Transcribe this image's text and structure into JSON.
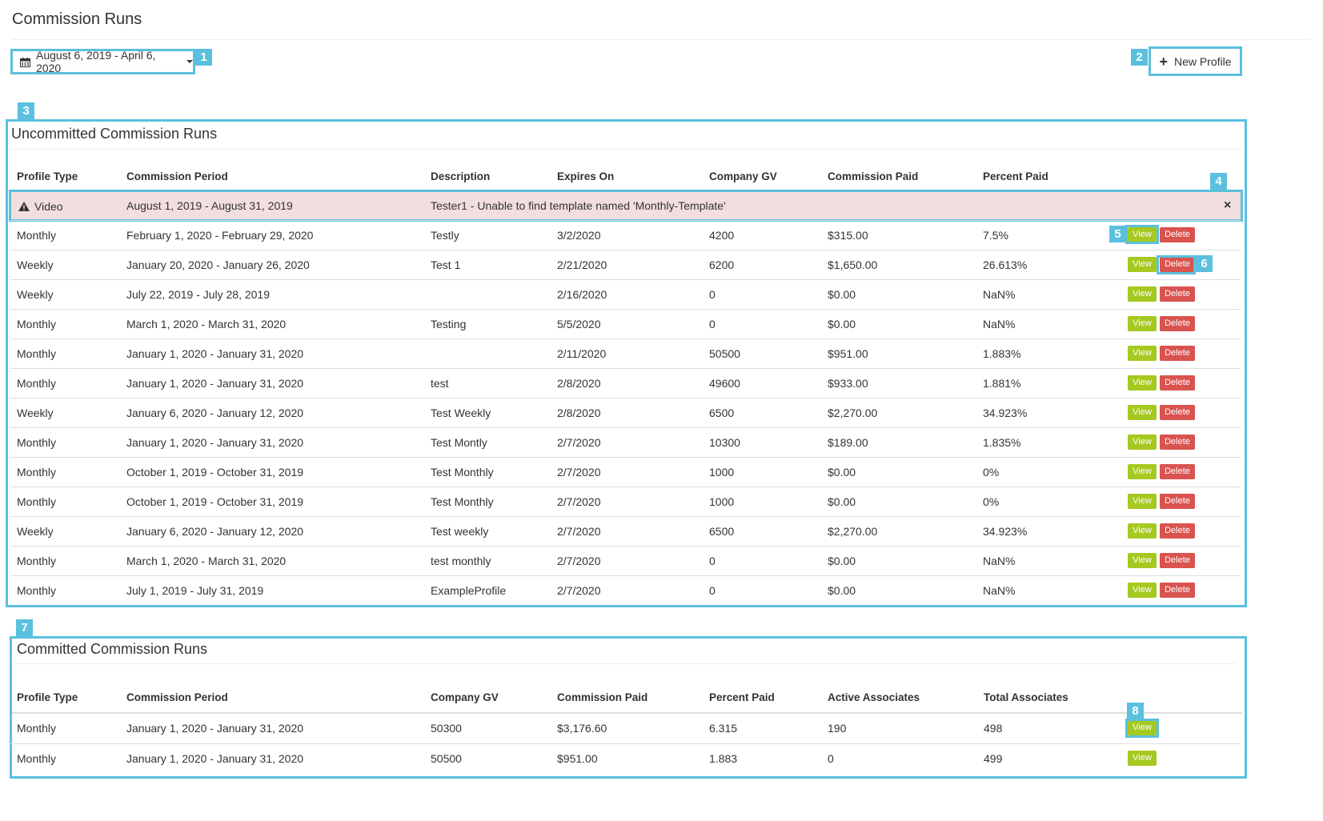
{
  "page": {
    "title": "Commission Runs"
  },
  "date_range": {
    "label": "August 6, 2019 - April 6, 2020",
    "icon": "calendar-icon"
  },
  "new_profile": {
    "label": "New Profile",
    "icon": "plus-icon"
  },
  "callouts": [
    "1",
    "2",
    "3",
    "4",
    "5",
    "6",
    "7",
    "8"
  ],
  "uncommitted": {
    "title": "Uncommitted Commission Runs",
    "columns": [
      "Profile Type",
      "Commission Period",
      "Description",
      "Expires On",
      "Company GV",
      "Commission Paid",
      "Percent Paid"
    ],
    "error_row": {
      "type": "Video",
      "period": "August 1, 2019 - August 31, 2019",
      "message": "Tester1 - Unable to find template named 'Monthly-Template'",
      "close": "×"
    },
    "rows": [
      {
        "type": "Monthly",
        "period": "February 1, 2020 - February 29, 2020",
        "desc": "Testly",
        "expires": "3/2/2020",
        "gv": "4200",
        "paid": "$315.00",
        "pct": "7.5%"
      },
      {
        "type": "Weekly",
        "period": "January 20, 2020 - January 26, 2020",
        "desc": "Test 1",
        "expires": "2/21/2020",
        "gv": "6200",
        "paid": "$1,650.00",
        "pct": "26.613%"
      },
      {
        "type": "Weekly",
        "period": "July 22, 2019 - July 28, 2019",
        "desc": "",
        "expires": "2/16/2020",
        "gv": "0",
        "paid": "$0.00",
        "pct": "NaN%"
      },
      {
        "type": "Monthly",
        "period": "March 1, 2020 - March 31, 2020",
        "desc": "Testing",
        "expires": "5/5/2020",
        "gv": "0",
        "paid": "$0.00",
        "pct": "NaN%"
      },
      {
        "type": "Monthly",
        "period": "January 1, 2020 - January 31, 2020",
        "desc": "",
        "expires": "2/11/2020",
        "gv": "50500",
        "paid": "$951.00",
        "pct": "1.883%"
      },
      {
        "type": "Monthly",
        "period": "January 1, 2020 - January 31, 2020",
        "desc": "test",
        "expires": "2/8/2020",
        "gv": "49600",
        "paid": "$933.00",
        "pct": "1.881%"
      },
      {
        "type": "Weekly",
        "period": "January 6, 2020 - January 12, 2020",
        "desc": "Test Weekly",
        "expires": "2/8/2020",
        "gv": "6500",
        "paid": "$2,270.00",
        "pct": "34.923%"
      },
      {
        "type": "Monthly",
        "period": "January 1, 2020 - January 31, 2020",
        "desc": "Test Montly",
        "expires": "2/7/2020",
        "gv": "10300",
        "paid": "$189.00",
        "pct": "1.835%"
      },
      {
        "type": "Monthly",
        "period": "October 1, 2019 - October 31, 2019",
        "desc": "Test Monthly",
        "expires": "2/7/2020",
        "gv": "1000",
        "paid": "$0.00",
        "pct": "0%"
      },
      {
        "type": "Monthly",
        "period": "October 1, 2019 - October 31, 2019",
        "desc": "Test Monthly",
        "expires": "2/7/2020",
        "gv": "1000",
        "paid": "$0.00",
        "pct": "0%"
      },
      {
        "type": "Weekly",
        "period": "January 6, 2020 - January 12, 2020",
        "desc": "Test weekly",
        "expires": "2/7/2020",
        "gv": "6500",
        "paid": "$2,270.00",
        "pct": "34.923%"
      },
      {
        "type": "Monthly",
        "period": "March 1, 2020 - March 31, 2020",
        "desc": "test monthly",
        "expires": "2/7/2020",
        "gv": "0",
        "paid": "$0.00",
        "pct": "NaN%"
      },
      {
        "type": "Monthly",
        "period": "July 1, 2019 - July 31, 2019",
        "desc": "ExampleProfile",
        "expires": "2/7/2020",
        "gv": "0",
        "paid": "$0.00",
        "pct": "NaN%"
      }
    ],
    "view_label": "View",
    "delete_label": "Delete"
  },
  "committed": {
    "title": "Committed Commission Runs",
    "columns": [
      "Profile Type",
      "Commission Period",
      "Company GV",
      "Commission Paid",
      "Percent Paid",
      "Active Associates",
      "Total Associates"
    ],
    "rows": [
      {
        "type": "Monthly",
        "period": "January 1, 2020 - January 31, 2020",
        "gv": "50300",
        "paid": "$3,176.60",
        "pct": "6.315",
        "active": "190",
        "total": "498"
      },
      {
        "type": "Monthly",
        "period": "January 1, 2020 - January 31, 2020",
        "gv": "50500",
        "paid": "$951.00",
        "pct": "1.883",
        "active": "0",
        "total": "499"
      }
    ],
    "view_label": "View"
  },
  "colors": {
    "callout": "#5bc0de",
    "view": "#a5c920",
    "delete": "#d9534f",
    "error_row": "#f2dede"
  }
}
